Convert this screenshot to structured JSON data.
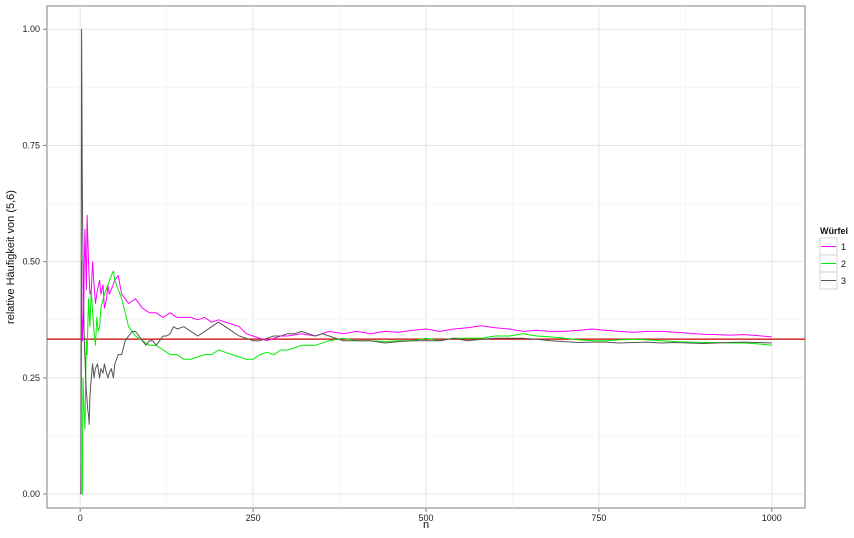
{
  "chart_data": {
    "type": "line",
    "title": "",
    "xlabel": "n",
    "ylabel": "relative Häufigkeit von (5,6)",
    "xlim": [
      -48,
      1048
    ],
    "ylim": [
      -0.03,
      1.05
    ],
    "x_ticks": [
      0,
      250,
      500,
      750,
      1000
    ],
    "x_tick_labels": [
      "0",
      "250",
      "500",
      "750",
      "1000"
    ],
    "y_ticks": [
      0.0,
      0.25,
      0.5,
      0.75,
      1.0
    ],
    "y_tick_labels": [
      "0.00",
      "0.25",
      "0.50",
      "0.75",
      "1.00"
    ],
    "grid": true,
    "legend": {
      "title": "Würfel",
      "placement": "right"
    },
    "reference_line": {
      "y": 0.3333,
      "color": "#cc0000"
    },
    "series": [
      {
        "name": "1",
        "color": "#ff00ff",
        "points": [
          [
            1,
            0.0
          ],
          [
            2,
            0.5
          ],
          [
            3,
            0.33
          ],
          [
            5,
            0.4
          ],
          [
            6,
            0.5
          ],
          [
            7,
            0.57
          ],
          [
            8,
            0.5
          ],
          [
            9,
            0.44
          ],
          [
            10,
            0.6
          ],
          [
            11,
            0.55
          ],
          [
            12,
            0.5
          ],
          [
            14,
            0.43
          ],
          [
            16,
            0.44
          ],
          [
            18,
            0.5
          ],
          [
            20,
            0.45
          ],
          [
            22,
            0.41
          ],
          [
            25,
            0.44
          ],
          [
            28,
            0.46
          ],
          [
            30,
            0.43
          ],
          [
            33,
            0.45
          ],
          [
            35,
            0.4
          ],
          [
            38,
            0.42
          ],
          [
            40,
            0.45
          ],
          [
            42,
            0.43
          ],
          [
            45,
            0.44
          ],
          [
            50,
            0.46
          ],
          [
            55,
            0.47
          ],
          [
            60,
            0.43
          ],
          [
            65,
            0.42
          ],
          [
            70,
            0.41
          ],
          [
            80,
            0.42
          ],
          [
            90,
            0.4
          ],
          [
            100,
            0.39
          ],
          [
            110,
            0.39
          ],
          [
            120,
            0.38
          ],
          [
            130,
            0.39
          ],
          [
            140,
            0.38
          ],
          [
            150,
            0.38
          ],
          [
            160,
            0.38
          ],
          [
            170,
            0.375
          ],
          [
            180,
            0.38
          ],
          [
            190,
            0.37
          ],
          [
            200,
            0.375
          ],
          [
            210,
            0.37
          ],
          [
            220,
            0.365
          ],
          [
            230,
            0.36
          ],
          [
            240,
            0.345
          ],
          [
            250,
            0.34
          ],
          [
            260,
            0.335
          ],
          [
            270,
            0.33
          ],
          [
            280,
            0.335
          ],
          [
            290,
            0.34
          ],
          [
            300,
            0.34
          ],
          [
            320,
            0.345
          ],
          [
            340,
            0.34
          ],
          [
            360,
            0.35
          ],
          [
            380,
            0.345
          ],
          [
            400,
            0.35
          ],
          [
            420,
            0.345
          ],
          [
            440,
            0.35
          ],
          [
            460,
            0.348
          ],
          [
            480,
            0.352
          ],
          [
            500,
            0.355
          ],
          [
            520,
            0.35
          ],
          [
            540,
            0.355
          ],
          [
            560,
            0.358
          ],
          [
            580,
            0.362
          ],
          [
            600,
            0.358
          ],
          [
            620,
            0.355
          ],
          [
            640,
            0.35
          ],
          [
            660,
            0.352
          ],
          [
            680,
            0.35
          ],
          [
            700,
            0.35
          ],
          [
            720,
            0.352
          ],
          [
            740,
            0.355
          ],
          [
            760,
            0.352
          ],
          [
            780,
            0.35
          ],
          [
            800,
            0.348
          ],
          [
            820,
            0.35
          ],
          [
            840,
            0.35
          ],
          [
            860,
            0.348
          ],
          [
            880,
            0.346
          ],
          [
            900,
            0.344
          ],
          [
            920,
            0.343
          ],
          [
            940,
            0.342
          ],
          [
            960,
            0.343
          ],
          [
            980,
            0.341
          ],
          [
            1000,
            0.338
          ]
        ]
      },
      {
        "name": "2",
        "color": "#00ee00",
        "points": [
          [
            1,
            0.0
          ],
          [
            2,
            0.0
          ],
          [
            3,
            0.0
          ],
          [
            4,
            0.25
          ],
          [
            5,
            0.2
          ],
          [
            6,
            0.17
          ],
          [
            7,
            0.14
          ],
          [
            8,
            0.25
          ],
          [
            9,
            0.33
          ],
          [
            10,
            0.3
          ],
          [
            12,
            0.42
          ],
          [
            14,
            0.36
          ],
          [
            16,
            0.44
          ],
          [
            18,
            0.39
          ],
          [
            20,
            0.35
          ],
          [
            22,
            0.32
          ],
          [
            24,
            0.38
          ],
          [
            26,
            0.35
          ],
          [
            28,
            0.36
          ],
          [
            30,
            0.4
          ],
          [
            35,
            0.43
          ],
          [
            40,
            0.45
          ],
          [
            45,
            0.47
          ],
          [
            48,
            0.48
          ],
          [
            50,
            0.46
          ],
          [
            55,
            0.44
          ],
          [
            60,
            0.42
          ],
          [
            65,
            0.39
          ],
          [
            70,
            0.36
          ],
          [
            75,
            0.35
          ],
          [
            80,
            0.34
          ],
          [
            90,
            0.33
          ],
          [
            100,
            0.32
          ],
          [
            110,
            0.32
          ],
          [
            120,
            0.31
          ],
          [
            130,
            0.3
          ],
          [
            140,
            0.3
          ],
          [
            150,
            0.29
          ],
          [
            160,
            0.29
          ],
          [
            170,
            0.295
          ],
          [
            180,
            0.3
          ],
          [
            190,
            0.3
          ],
          [
            200,
            0.31
          ],
          [
            210,
            0.305
          ],
          [
            220,
            0.3
          ],
          [
            230,
            0.295
          ],
          [
            240,
            0.29
          ],
          [
            250,
            0.29
          ],
          [
            260,
            0.3
          ],
          [
            270,
            0.305
          ],
          [
            280,
            0.3
          ],
          [
            290,
            0.31
          ],
          [
            300,
            0.31
          ],
          [
            320,
            0.32
          ],
          [
            340,
            0.32
          ],
          [
            360,
            0.33
          ],
          [
            380,
            0.335
          ],
          [
            400,
            0.33
          ],
          [
            420,
            0.33
          ],
          [
            440,
            0.328
          ],
          [
            460,
            0.33
          ],
          [
            480,
            0.33
          ],
          [
            500,
            0.335
          ],
          [
            520,
            0.33
          ],
          [
            540,
            0.335
          ],
          [
            560,
            0.335
          ],
          [
            580,
            0.335
          ],
          [
            600,
            0.34
          ],
          [
            620,
            0.34
          ],
          [
            640,
            0.345
          ],
          [
            660,
            0.34
          ],
          [
            680,
            0.338
          ],
          [
            700,
            0.335
          ],
          [
            720,
            0.332
          ],
          [
            740,
            0.33
          ],
          [
            760,
            0.33
          ],
          [
            780,
            0.332
          ],
          [
            800,
            0.333
          ],
          [
            820,
            0.332
          ],
          [
            840,
            0.33
          ],
          [
            860,
            0.328
          ],
          [
            880,
            0.327
          ],
          [
            900,
            0.326
          ],
          [
            920,
            0.326
          ],
          [
            940,
            0.325
          ],
          [
            960,
            0.325
          ],
          [
            980,
            0.323
          ],
          [
            1000,
            0.32
          ]
        ]
      },
      {
        "name": "3",
        "color": "#555555",
        "points": [
          [
            1,
            0.0
          ],
          [
            2,
            1.0
          ],
          [
            3,
            0.67
          ],
          [
            4,
            0.5
          ],
          [
            5,
            0.4
          ],
          [
            6,
            0.33
          ],
          [
            7,
            0.29
          ],
          [
            8,
            0.25
          ],
          [
            9,
            0.22
          ],
          [
            10,
            0.2
          ],
          [
            11,
            0.18
          ],
          [
            12,
            0.17
          ],
          [
            13,
            0.15
          ],
          [
            14,
            0.21
          ],
          [
            16,
            0.25
          ],
          [
            18,
            0.28
          ],
          [
            20,
            0.25
          ],
          [
            22,
            0.27
          ],
          [
            25,
            0.28
          ],
          [
            28,
            0.25
          ],
          [
            30,
            0.27
          ],
          [
            33,
            0.26
          ],
          [
            35,
            0.28
          ],
          [
            38,
            0.26
          ],
          [
            40,
            0.25
          ],
          [
            42,
            0.26
          ],
          [
            45,
            0.27
          ],
          [
            48,
            0.25
          ],
          [
            50,
            0.28
          ],
          [
            55,
            0.3
          ],
          [
            60,
            0.3
          ],
          [
            65,
            0.33
          ],
          [
            70,
            0.34
          ],
          [
            75,
            0.35
          ],
          [
            80,
            0.35
          ],
          [
            85,
            0.34
          ],
          [
            90,
            0.33
          ],
          [
            95,
            0.32
          ],
          [
            100,
            0.33
          ],
          [
            105,
            0.33
          ],
          [
            110,
            0.32
          ],
          [
            115,
            0.33
          ],
          [
            120,
            0.34
          ],
          [
            125,
            0.34
          ],
          [
            130,
            0.345
          ],
          [
            135,
            0.36
          ],
          [
            140,
            0.355
          ],
          [
            150,
            0.36
          ],
          [
            160,
            0.35
          ],
          [
            170,
            0.34
          ],
          [
            180,
            0.35
          ],
          [
            190,
            0.36
          ],
          [
            200,
            0.37
          ],
          [
            210,
            0.36
          ],
          [
            220,
            0.35
          ],
          [
            230,
            0.34
          ],
          [
            240,
            0.335
          ],
          [
            250,
            0.33
          ],
          [
            260,
            0.33
          ],
          [
            270,
            0.335
          ],
          [
            280,
            0.34
          ],
          [
            290,
            0.34
          ],
          [
            300,
            0.345
          ],
          [
            310,
            0.345
          ],
          [
            320,
            0.35
          ],
          [
            330,
            0.345
          ],
          [
            340,
            0.34
          ],
          [
            350,
            0.345
          ],
          [
            360,
            0.34
          ],
          [
            380,
            0.33
          ],
          [
            400,
            0.33
          ],
          [
            420,
            0.33
          ],
          [
            440,
            0.325
          ],
          [
            460,
            0.328
          ],
          [
            480,
            0.33
          ],
          [
            500,
            0.33
          ],
          [
            520,
            0.33
          ],
          [
            540,
            0.335
          ],
          [
            560,
            0.33
          ],
          [
            580,
            0.333
          ],
          [
            600,
            0.335
          ],
          [
            620,
            0.335
          ],
          [
            640,
            0.335
          ],
          [
            660,
            0.333
          ],
          [
            680,
            0.33
          ],
          [
            700,
            0.328
          ],
          [
            720,
            0.326
          ],
          [
            740,
            0.327
          ],
          [
            760,
            0.327
          ],
          [
            780,
            0.325
          ],
          [
            800,
            0.326
          ],
          [
            820,
            0.327
          ],
          [
            840,
            0.325
          ],
          [
            860,
            0.326
          ],
          [
            880,
            0.325
          ],
          [
            900,
            0.324
          ],
          [
            920,
            0.325
          ],
          [
            940,
            0.326
          ],
          [
            960,
            0.327
          ],
          [
            980,
            0.326
          ],
          [
            1000,
            0.325
          ]
        ]
      }
    ]
  }
}
